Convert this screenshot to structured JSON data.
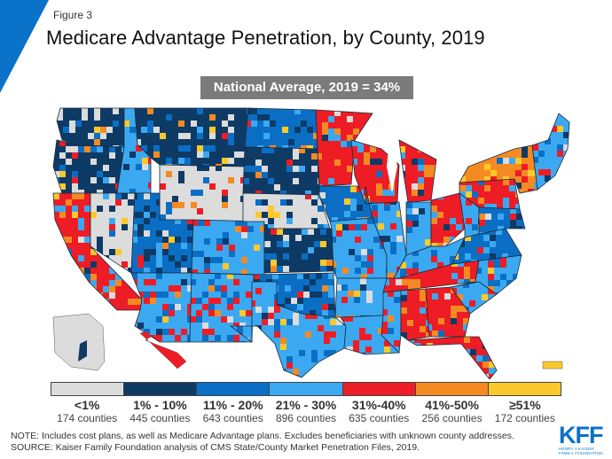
{
  "header": {
    "figure_label": "Figure 3",
    "title": "Medicare Advantage Penetration, by County, 2019",
    "national_average": "National Average, 2019 = 34%"
  },
  "chart_data": {
    "type": "heatmap",
    "subtype": "choropleth-map",
    "title": "Medicare Advantage Penetration, by County, 2019",
    "annotation": "National Average, 2019 = 34%",
    "national_average_pct": 34,
    "year": 2019,
    "legend_position": "bottom",
    "categories": [
      {
        "range": "<1%",
        "counties": 174,
        "count_label": "174 counties",
        "color": "#dcdcdc"
      },
      {
        "range": "1% - 10%",
        "counties": 445,
        "count_label": "445 counties",
        "color": "#0e3a66"
      },
      {
        "range": "11% - 20%",
        "counties": 643,
        "count_label": "643 counties",
        "color": "#0a6fc4"
      },
      {
        "range": "21% - 30%",
        "counties": 896,
        "count_label": "896 counties",
        "color": "#3ba9f2"
      },
      {
        "range": "31%-40%",
        "counties": 635,
        "count_label": "635 counties",
        "color": "#ee1c25"
      },
      {
        "range": "41%-50%",
        "counties": 256,
        "count_label": "256 counties",
        "color": "#f58a22"
      },
      {
        "range": "≥51%",
        "counties": 172,
        "count_label": "172 counties",
        "color": "#fcc92b"
      }
    ],
    "regions_dominant_category": [
      {
        "region": "Washington",
        "category": 1
      },
      {
        "region": "Oregon",
        "category": 1
      },
      {
        "region": "California",
        "category": 4
      },
      {
        "region": "Nevada",
        "category": 0
      },
      {
        "region": "Idaho",
        "category": 3
      },
      {
        "region": "Montana",
        "category": 1
      },
      {
        "region": "Wyoming",
        "category": 0
      },
      {
        "region": "Utah",
        "category": 2
      },
      {
        "region": "Arizona",
        "category": 3
      },
      {
        "region": "Colorado",
        "category": 3
      },
      {
        "region": "New Mexico",
        "category": 3
      },
      {
        "region": "North Dakota",
        "category": 2
      },
      {
        "region": "South Dakota",
        "category": 1
      },
      {
        "region": "Nebraska",
        "category": 0
      },
      {
        "region": "Kansas",
        "category": 1
      },
      {
        "region": "Oklahoma",
        "category": 2
      },
      {
        "region": "Texas",
        "category": 3
      },
      {
        "region": "Minnesota",
        "category": 4
      },
      {
        "region": "Iowa",
        "category": 2
      },
      {
        "region": "Missouri",
        "category": 3
      },
      {
        "region": "Arkansas",
        "category": 3
      },
      {
        "region": "Louisiana",
        "category": 3
      },
      {
        "region": "Wisconsin",
        "category": 4
      },
      {
        "region": "Illinois",
        "category": 3
      },
      {
        "region": "Michigan",
        "category": 4
      },
      {
        "region": "Indiana",
        "category": 3
      },
      {
        "region": "Ohio",
        "category": 4
      },
      {
        "region": "Kentucky",
        "category": 3
      },
      {
        "region": "Tennessee",
        "category": 4
      },
      {
        "region": "Mississippi",
        "category": 3
      },
      {
        "region": "Alabama",
        "category": 4
      },
      {
        "region": "Georgia",
        "category": 4
      },
      {
        "region": "Florida",
        "category": 4
      },
      {
        "region": "South Carolina",
        "category": 3
      },
      {
        "region": "North Carolina",
        "category": 3
      },
      {
        "region": "Virginia",
        "category": 2
      },
      {
        "region": "West Virginia",
        "category": 3
      },
      {
        "region": "Pennsylvania",
        "category": 4
      },
      {
        "region": "New York",
        "category": 5
      },
      {
        "region": "New England",
        "category": 3
      },
      {
        "region": "Maryland/Delaware",
        "category": 2
      },
      {
        "region": "Alaska",
        "category": 0
      },
      {
        "region": "Hawaii",
        "category": 4
      },
      {
        "region": "Puerto Rico",
        "category": 6
      }
    ]
  },
  "legend": {
    "items": [
      {
        "range": "<1%",
        "count": "174 counties"
      },
      {
        "range": "1% - 10%",
        "count": "445 counties"
      },
      {
        "range": "11% - 20%",
        "count": "643 counties"
      },
      {
        "range": "21% - 30%",
        "count": "896 counties"
      },
      {
        "range": "31%-40%",
        "count": "635 counties"
      },
      {
        "range": "41%-50%",
        "count": "256 counties"
      },
      {
        "range": "≥51%",
        "count": "172 counties"
      }
    ]
  },
  "footer": {
    "note": "NOTE: Includes cost plans, as well as Medicare Advantage plans. Excludes beneficiaries with unknown county addresses.",
    "source": "SOURCE: Kaiser Family Foundation analysis of CMS State/County Market Penetration Files, 2019.",
    "logo_main": "KFF",
    "logo_sub_1": "HENRY J KAISER",
    "logo_sub_2": "FAMILY FOUNDATION"
  },
  "colors": {
    "accent": "#0a72c8",
    "avg_box": "#7b7b7b"
  }
}
